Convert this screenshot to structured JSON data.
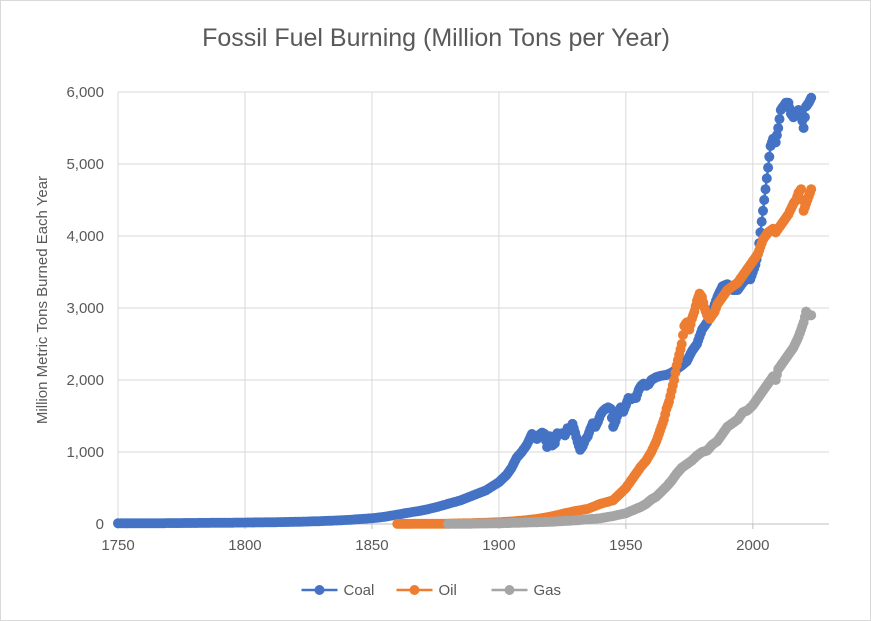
{
  "chart_data": {
    "type": "line",
    "title": "Fossil Fuel Burning (Million Tons per Year)",
    "xlabel": "",
    "ylabel": "Million Metric Tons Burned  Each Year",
    "xlim": [
      1750,
      2030
    ],
    "ylim": [
      0,
      6000
    ],
    "x_ticks": [
      1750,
      1800,
      1850,
      1900,
      1950,
      2000
    ],
    "y_ticks": [
      0,
      1000,
      2000,
      3000,
      4000,
      5000,
      6000
    ],
    "x_tick_labels": [
      "1750",
      "1800",
      "1850",
      "1900",
      "1950",
      "2000"
    ],
    "y_tick_labels": [
      "0",
      "1,000",
      "2,000",
      "3,000",
      "4,000",
      "5,000",
      "6,000"
    ],
    "grid": true,
    "markers": true,
    "legend_position": "bottom",
    "series": [
      {
        "name": "Coal",
        "color": "#4472c4",
        "points": [
          [
            1750,
            10
          ],
          [
            1760,
            11
          ],
          [
            1770,
            12
          ],
          [
            1780,
            14
          ],
          [
            1790,
            17
          ],
          [
            1800,
            20
          ],
          [
            1810,
            24
          ],
          [
            1820,
            30
          ],
          [
            1830,
            40
          ],
          [
            1840,
            55
          ],
          [
            1850,
            80
          ],
          [
            1855,
            100
          ],
          [
            1860,
            130
          ],
          [
            1865,
            160
          ],
          [
            1870,
            190
          ],
          [
            1875,
            230
          ],
          [
            1880,
            280
          ],
          [
            1885,
            330
          ],
          [
            1890,
            400
          ],
          [
            1895,
            470
          ],
          [
            1900,
            580
          ],
          [
            1903,
            680
          ],
          [
            1905,
            780
          ],
          [
            1907,
            920
          ],
          [
            1909,
            1000
          ],
          [
            1911,
            1100
          ],
          [
            1913,
            1250
          ],
          [
            1914,
            1200
          ],
          [
            1915,
            1180
          ],
          [
            1916,
            1240
          ],
          [
            1917,
            1270
          ],
          [
            1918,
            1250
          ],
          [
            1919,
            1070
          ],
          [
            1920,
            1220
          ],
          [
            1921,
            1090
          ],
          [
            1922,
            1120
          ],
          [
            1923,
            1260
          ],
          [
            1924,
            1250
          ],
          [
            1925,
            1260
          ],
          [
            1926,
            1230
          ],
          [
            1927,
            1330
          ],
          [
            1928,
            1300
          ],
          [
            1929,
            1390
          ],
          [
            1930,
            1270
          ],
          [
            1931,
            1140
          ],
          [
            1932,
            1030
          ],
          [
            1933,
            1080
          ],
          [
            1934,
            1170
          ],
          [
            1935,
            1220
          ],
          [
            1936,
            1320
          ],
          [
            1937,
            1400
          ],
          [
            1938,
            1350
          ],
          [
            1939,
            1420
          ],
          [
            1940,
            1520
          ],
          [
            1941,
            1570
          ],
          [
            1942,
            1600
          ],
          [
            1943,
            1620
          ],
          [
            1944,
            1600
          ],
          [
            1945,
            1350
          ],
          [
            1946,
            1430
          ],
          [
            1947,
            1560
          ],
          [
            1948,
            1620
          ],
          [
            1949,
            1560
          ],
          [
            1950,
            1650
          ],
          [
            1951,
            1750
          ],
          [
            1952,
            1730
          ],
          [
            1953,
            1750
          ],
          [
            1954,
            1750
          ],
          [
            1955,
            1860
          ],
          [
            1956,
            1920
          ],
          [
            1957,
            1950
          ],
          [
            1958,
            1920
          ],
          [
            1959,
            1940
          ],
          [
            1960,
            2000
          ],
          [
            1962,
            2040
          ],
          [
            1964,
            2060
          ],
          [
            1966,
            2070
          ],
          [
            1968,
            2100
          ],
          [
            1970,
            2150
          ],
          [
            1972,
            2200
          ],
          [
            1974,
            2260
          ],
          [
            1976,
            2400
          ],
          [
            1978,
            2500
          ],
          [
            1980,
            2700
          ],
          [
            1982,
            2800
          ],
          [
            1984,
            2950
          ],
          [
            1986,
            3150
          ],
          [
            1988,
            3300
          ],
          [
            1990,
            3330
          ],
          [
            1992,
            3250
          ],
          [
            1994,
            3250
          ],
          [
            1996,
            3350
          ],
          [
            1998,
            3420
          ],
          [
            1999,
            3400
          ],
          [
            2000,
            3500
          ],
          [
            2001,
            3600
          ],
          [
            2002,
            3750
          ],
          [
            2003,
            4050
          ],
          [
            2004,
            4350
          ],
          [
            2005,
            4650
          ],
          [
            2006,
            4950
          ],
          [
            2007,
            5250
          ],
          [
            2008,
            5350
          ],
          [
            2009,
            5300
          ],
          [
            2010,
            5500
          ],
          [
            2011,
            5750
          ],
          [
            2012,
            5800
          ],
          [
            2013,
            5850
          ],
          [
            2014,
            5850
          ],
          [
            2015,
            5700
          ],
          [
            2016,
            5650
          ],
          [
            2017,
            5700
          ],
          [
            2018,
            5750
          ],
          [
            2019,
            5700
          ],
          [
            2020,
            5500
          ],
          [
            2021,
            5800
          ],
          [
            2022,
            5850
          ],
          [
            2023,
            5920
          ]
        ]
      },
      {
        "name": "Oil",
        "color": "#ed7d31",
        "points": [
          [
            1860,
            1
          ],
          [
            1870,
            3
          ],
          [
            1880,
            5
          ],
          [
            1890,
            12
          ],
          [
            1900,
            25
          ],
          [
            1905,
            35
          ],
          [
            1910,
            50
          ],
          [
            1915,
            70
          ],
          [
            1920,
            100
          ],
          [
            1925,
            140
          ],
          [
            1930,
            180
          ],
          [
            1935,
            210
          ],
          [
            1940,
            280
          ],
          [
            1945,
            330
          ],
          [
            1948,
            430
          ],
          [
            1950,
            500
          ],
          [
            1952,
            600
          ],
          [
            1954,
            700
          ],
          [
            1956,
            800
          ],
          [
            1958,
            880
          ],
          [
            1960,
            1000
          ],
          [
            1962,
            1150
          ],
          [
            1963,
            1250
          ],
          [
            1964,
            1350
          ],
          [
            1965,
            1450
          ],
          [
            1966,
            1600
          ],
          [
            1967,
            1700
          ],
          [
            1968,
            1850
          ],
          [
            1969,
            2000
          ],
          [
            1970,
            2200
          ],
          [
            1971,
            2350
          ],
          [
            1972,
            2500
          ],
          [
            1973,
            2750
          ],
          [
            1974,
            2800
          ],
          [
            1975,
            2700
          ],
          [
            1976,
            2850
          ],
          [
            1977,
            2950
          ],
          [
            1978,
            3100
          ],
          [
            1979,
            3200
          ],
          [
            1980,
            3150
          ],
          [
            1981,
            3000
          ],
          [
            1982,
            2900
          ],
          [
            1983,
            2850
          ],
          [
            1984,
            2900
          ],
          [
            1985,
            2950
          ],
          [
            1986,
            3050
          ],
          [
            1987,
            3100
          ],
          [
            1988,
            3150
          ],
          [
            1989,
            3200
          ],
          [
            1990,
            3250
          ],
          [
            1992,
            3300
          ],
          [
            1994,
            3350
          ],
          [
            1996,
            3450
          ],
          [
            1998,
            3550
          ],
          [
            2000,
            3650
          ],
          [
            2002,
            3750
          ],
          [
            2004,
            3950
          ],
          [
            2006,
            4050
          ],
          [
            2008,
            4100
          ],
          [
            2009,
            4050
          ],
          [
            2010,
            4100
          ],
          [
            2012,
            4200
          ],
          [
            2014,
            4300
          ],
          [
            2016,
            4450
          ],
          [
            2017,
            4500
          ],
          [
            2018,
            4600
          ],
          [
            2019,
            4650
          ],
          [
            2020,
            4350
          ],
          [
            2021,
            4450
          ],
          [
            2022,
            4550
          ],
          [
            2023,
            4650
          ]
        ]
      },
      {
        "name": "Gas",
        "color": "#a5a5a5",
        "points": [
          [
            1880,
            2
          ],
          [
            1890,
            5
          ],
          [
            1900,
            10
          ],
          [
            1910,
            20
          ],
          [
            1920,
            30
          ],
          [
            1930,
            50
          ],
          [
            1940,
            80
          ],
          [
            1945,
            110
          ],
          [
            1950,
            150
          ],
          [
            1952,
            180
          ],
          [
            1954,
            210
          ],
          [
            1956,
            240
          ],
          [
            1958,
            280
          ],
          [
            1960,
            340
          ],
          [
            1962,
            380
          ],
          [
            1964,
            450
          ],
          [
            1966,
            520
          ],
          [
            1968,
            600
          ],
          [
            1970,
            700
          ],
          [
            1972,
            780
          ],
          [
            1974,
            830
          ],
          [
            1976,
            880
          ],
          [
            1978,
            950
          ],
          [
            1980,
            1000
          ],
          [
            1982,
            1020
          ],
          [
            1984,
            1100
          ],
          [
            1986,
            1150
          ],
          [
            1988,
            1250
          ],
          [
            1990,
            1350
          ],
          [
            1992,
            1400
          ],
          [
            1994,
            1450
          ],
          [
            1996,
            1550
          ],
          [
            1998,
            1580
          ],
          [
            2000,
            1650
          ],
          [
            2002,
            1750
          ],
          [
            2004,
            1850
          ],
          [
            2006,
            1950
          ],
          [
            2008,
            2050
          ],
          [
            2009,
            2000
          ],
          [
            2010,
            2150
          ],
          [
            2012,
            2250
          ],
          [
            2014,
            2350
          ],
          [
            2016,
            2450
          ],
          [
            2018,
            2600
          ],
          [
            2019,
            2700
          ],
          [
            2020,
            2800
          ],
          [
            2021,
            2950
          ],
          [
            2022,
            2900
          ],
          [
            2023,
            2900
          ]
        ]
      }
    ]
  }
}
